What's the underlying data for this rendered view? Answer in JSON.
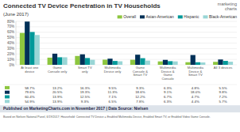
{
  "chart_data": {
    "type": "bar",
    "title": "Connected TV Device Penetration in TV Households",
    "subtitle": "(June 2017)",
    "categories": [
      "At least one\ndevice",
      "Game\nConsole only",
      "Smart TV\nonly",
      "Multimedia\nDevice only",
      "Game\nConsole &\nSmart TV",
      "Multimedia\nDevice &\nGame\nConsole",
      "Multimedia\nDevice &\nSmart TV",
      "All 3 devices"
    ],
    "series": [
      {
        "name": "Overall",
        "color": "#8dc63f",
        "values": [
          58.7,
          13.2,
          16.3,
          9.5,
          9.3,
          6.3,
          4.8,
          5.5
        ],
        "value_labels": [
          "58.7%",
          "13.2%",
          "16.3%",
          "9.5%",
          "9.3%",
          "6.3%",
          "4.8%",
          "5.5%"
        ]
      },
      {
        "name": "Asian-American",
        "color": "#003057",
        "values": [
          79.6,
          20.5,
          19.3,
          11.3,
          18.6,
          9.1,
          18.0,
          9.8
        ],
        "value_labels": [
          "79.6%",
          "20.5%",
          "19.3%",
          "11.3%",
          "18.6%",
          "9.1%",
          "18.0%",
          "9.8%"
        ]
      },
      {
        "name": "Hispanic",
        "color": "#009999",
        "values": [
          60.4,
          13.9,
          12.5,
          7.1,
          12.2,
          6.7,
          4.7,
          7.2
        ],
        "value_labels": [
          "60.4%",
          "13.9%",
          "12.5%",
          "7.1%",
          "12.2%",
          "6.7%",
          "4.7%",
          "7.2%"
        ]
      },
      {
        "name": "Black-American",
        "color": "#99d6d6",
        "values": [
          54.9,
          13.9,
          9.3,
          6.5,
          7.8,
          6.3,
          4.4,
          5.7
        ],
        "value_labels": [
          "54.9%",
          "13.9%",
          "9.3%",
          "6.5%",
          "7.8%",
          "6.3%",
          "4.4%",
          "5.7%"
        ]
      }
    ],
    "ylim": [
      0,
      80
    ],
    "yticks": [
      {
        "value": 0,
        "label": "0%"
      },
      {
        "value": 10,
        "label": "10%"
      },
      {
        "value": 20,
        "label": "20%"
      },
      {
        "value": 30,
        "label": "30%"
      },
      {
        "value": 40,
        "label": "40%"
      },
      {
        "value": 50,
        "label": "50%"
      },
      {
        "value": 60,
        "label": "60%"
      },
      {
        "value": 70,
        "label": "70%"
      },
      {
        "value": 80,
        "label": "80%"
      }
    ],
    "grid": true,
    "legend": "upper right",
    "annotations": [
      "marketing\ncharts",
      "Published on MarketingCharts.com in November 2017 | Data Source: Nielsen",
      "Based on Nielsen National Panel, 6/19/2017; Household: Connected TV Device = Enabled Multimedia Device, Enabled Smart TV, or Enabled Video Game Console."
    ]
  }
}
